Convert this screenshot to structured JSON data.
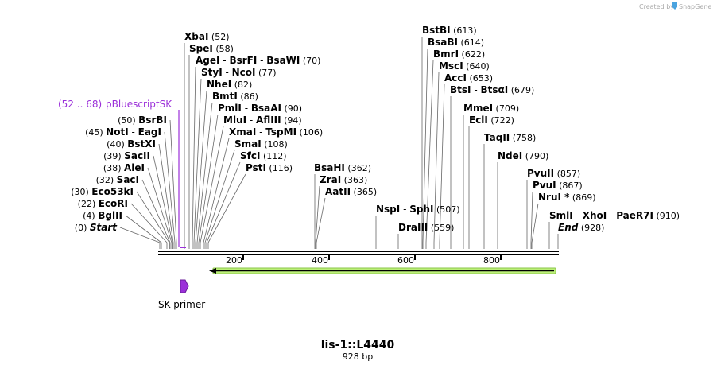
{
  "credit": {
    "text": "Created by",
    "brand": "SnapGene"
  },
  "title": "lis-1::L4440",
  "length": "928 bp",
  "scale": {
    "ticks": [
      "200",
      "400",
      "600",
      "800"
    ]
  },
  "feature": {
    "range": "(52 .. 68)",
    "name": "pBluescriptSK"
  },
  "primer": {
    "name": "SK primer"
  },
  "enzymes": [
    {
      "names": [
        "XbaI"
      ],
      "pos": "(52)"
    },
    {
      "names": [
        "SpeI"
      ],
      "pos": "(58)"
    },
    {
      "names": [
        "AgeI",
        "BsrFI",
        "BsaWI"
      ],
      "pos": "(70)"
    },
    {
      "names": [
        "StyI",
        "NcoI"
      ],
      "pos": "(77)"
    },
    {
      "names": [
        "NheI"
      ],
      "pos": "(82)"
    },
    {
      "names": [
        "BmtI"
      ],
      "pos": "(86)"
    },
    {
      "names": [
        "PmlI",
        "BsaAI"
      ],
      "pos": "(90)"
    },
    {
      "names": [
        "MluI",
        "AflIII"
      ],
      "pos": "(94)"
    },
    {
      "names": [
        "XmaI",
        "TspMI"
      ],
      "pos": "(106)"
    },
    {
      "names": [
        "SmaI"
      ],
      "pos": "(108)"
    },
    {
      "names": [
        "SfcI"
      ],
      "pos": "(112)"
    },
    {
      "names": [
        "PstI"
      ],
      "pos": "(116)"
    },
    {
      "names": [
        "BsrBI"
      ],
      "pos": "(50)"
    },
    {
      "names": [
        "NotI",
        "EagI"
      ],
      "pos": "(45)"
    },
    {
      "names": [
        "BstXI"
      ],
      "pos": "(40)"
    },
    {
      "names": [
        "SacII"
      ],
      "pos": "(39)"
    },
    {
      "names": [
        "AleI"
      ],
      "pos": "(38)"
    },
    {
      "names": [
        "SacI"
      ],
      "pos": "(32)"
    },
    {
      "names": [
        "Eco53kI"
      ],
      "pos": "(30)"
    },
    {
      "names": [
        "EcoRI"
      ],
      "pos": "(22)"
    },
    {
      "names": [
        "BglII"
      ],
      "pos": "(4)"
    },
    {
      "names": [
        "Start"
      ],
      "pos": "(0)"
    },
    {
      "names": [
        "BsaHI"
      ],
      "pos": "(362)"
    },
    {
      "names": [
        "ZraI"
      ],
      "pos": "(363)"
    },
    {
      "names": [
        "AatII"
      ],
      "pos": "(365)"
    },
    {
      "names": [
        "NspI",
        "SphI"
      ],
      "pos": "(507)"
    },
    {
      "names": [
        "DraIII"
      ],
      "pos": "(559)"
    },
    {
      "names": [
        "BstBI"
      ],
      "pos": "(613)"
    },
    {
      "names": [
        "BsaBI"
      ],
      "pos": "(614)"
    },
    {
      "names": [
        "BmrI"
      ],
      "pos": "(622)"
    },
    {
      "names": [
        "MscI"
      ],
      "pos": "(640)"
    },
    {
      "names": [
        "AccI"
      ],
      "pos": "(653)"
    },
    {
      "names": [
        "BtsI",
        "BtsαI"
      ],
      "pos": "(679)"
    },
    {
      "names": [
        "MmeI"
      ],
      "pos": "(709)"
    },
    {
      "names": [
        "EclI"
      ],
      "pos": "(722)"
    },
    {
      "names": [
        "TaqII"
      ],
      "pos": "(758)"
    },
    {
      "names": [
        "NdeI"
      ],
      "pos": "(790)"
    },
    {
      "names": [
        "PvuII"
      ],
      "pos": "(857)"
    },
    {
      "names": [
        "PvuI"
      ],
      "pos": "(867)"
    },
    {
      "names": [
        "NruI *"
      ],
      "pos": "(869)"
    },
    {
      "names": [
        "SmlI",
        "XhoI",
        "PaeR7I"
      ],
      "pos": "(910)"
    },
    {
      "names": [
        "End"
      ],
      "pos": "(928)"
    }
  ]
}
